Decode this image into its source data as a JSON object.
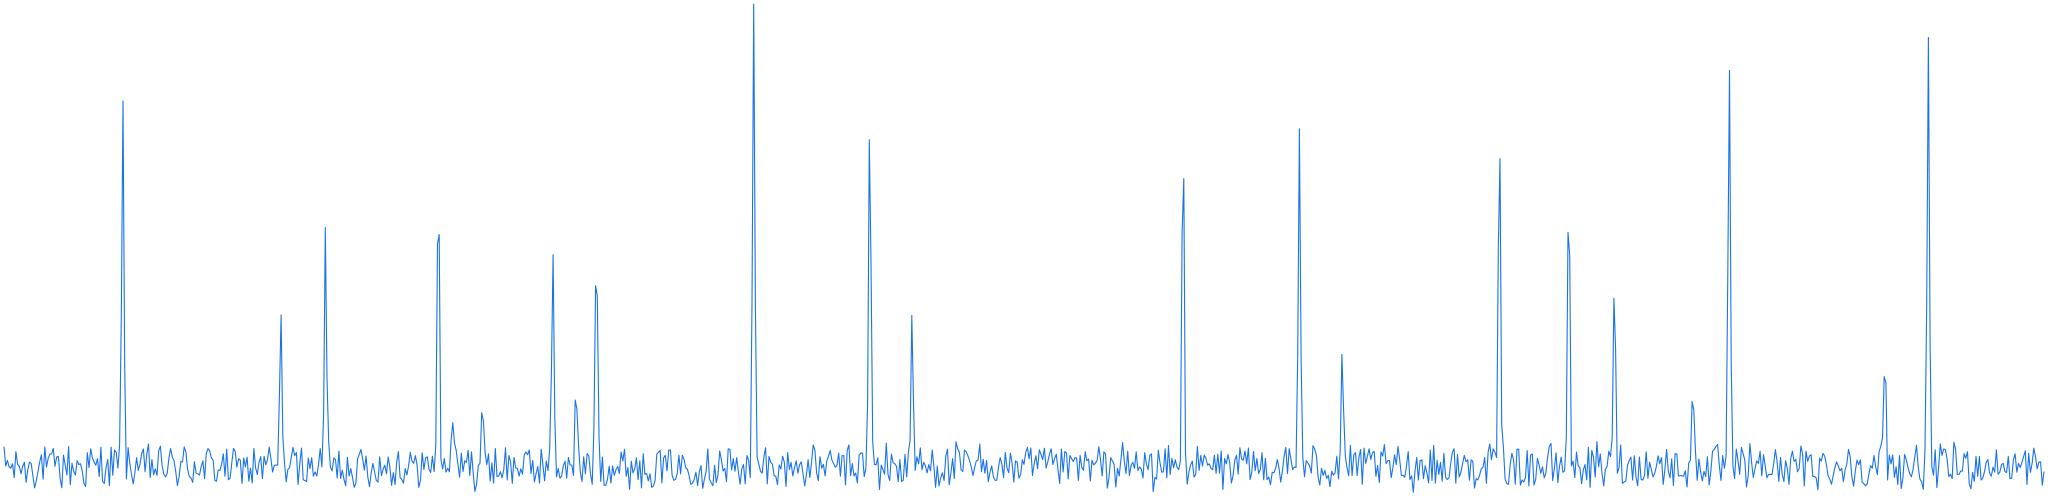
{
  "chart_data": {
    "type": "line",
    "title": "",
    "xlabel": "",
    "ylabel": "",
    "grid": false,
    "legend": "none",
    "colors": {
      "line": "#1a73e8"
    },
    "x_range": [
      0,
      1000
    ],
    "ylim": [
      0,
      100
    ],
    "baseline": 5.6,
    "noise_amplitude": 4.2,
    "series": [
      {
        "peaks": [
          {
            "x": 58.2,
            "y": 82.0
          },
          {
            "x": 135.8,
            "y": 36.3
          },
          {
            "x": 157.6,
            "y": 54.0
          },
          {
            "x": 212.9,
            "y": 67.0
          },
          {
            "x": 220.1,
            "y": 18.5
          },
          {
            "x": 234.5,
            "y": 18.5
          },
          {
            "x": 269.0,
            "y": 48.2
          },
          {
            "x": 280.4,
            "y": 18.5
          },
          {
            "x": 290.4,
            "y": 56.2
          },
          {
            "x": 367.5,
            "y": 100.0
          },
          {
            "x": 424.4,
            "y": 78.9
          },
          {
            "x": 445.2,
            "y": 37.2
          },
          {
            "x": 578.0,
            "y": 72.8
          },
          {
            "x": 635.0,
            "y": 75.7
          },
          {
            "x": 656.0,
            "y": 29.8
          },
          {
            "x": 733.0,
            "y": 76.5
          },
          {
            "x": 767.0,
            "y": 65.8
          },
          {
            "x": 789.5,
            "y": 45.1
          },
          {
            "x": 828.0,
            "y": 20.5
          },
          {
            "x": 845.7,
            "y": 86.0
          },
          {
            "x": 922.0,
            "y": 29.5
          },
          {
            "x": 943.3,
            "y": 89.5
          }
        ]
      }
    ]
  }
}
